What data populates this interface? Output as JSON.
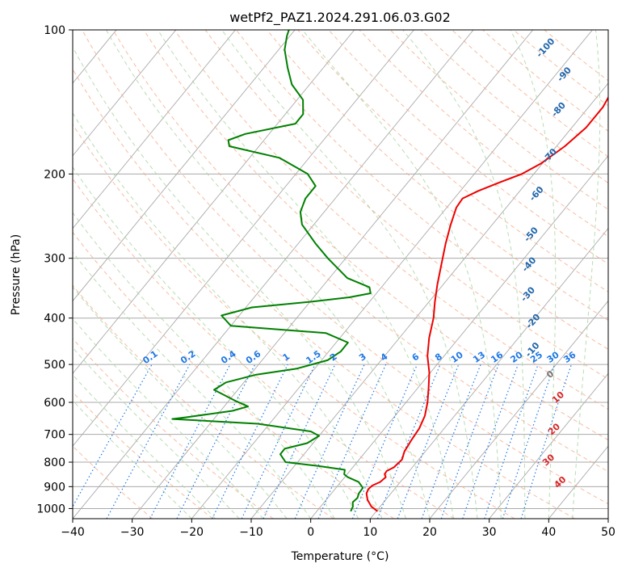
{
  "chart_data": {
    "type": "line",
    "title": "wetPf2_PAZ1.2024.291.06.03.G02",
    "xlabel": "Temperature (°C)",
    "ylabel": "Pressure (hPa)",
    "xlim": [
      -40,
      50
    ],
    "ylim": [
      1050,
      100
    ],
    "y_scale": "log",
    "skew": "skew-T log-p",
    "grid": true,
    "x_ticks": [
      -40,
      -30,
      -20,
      -10,
      0,
      10,
      20,
      30,
      40,
      50
    ],
    "x_tick_labels": [
      "−40",
      "−30",
      "−20",
      "−10",
      "0",
      "10",
      "20",
      "30",
      "40",
      "50"
    ],
    "y_ticks": [
      1000,
      900,
      800,
      700,
      600,
      500,
      400,
      300,
      200,
      100
    ],
    "y_tick_labels": [
      "1000",
      "900",
      "800",
      "700",
      "600",
      "500",
      "400",
      "300",
      "200",
      "100"
    ],
    "colors": {
      "temperature": "#ee0000",
      "dewpoint": "#008000",
      "isotherm": "#aaaaaa",
      "dry_adiabat": "#f4a582",
      "moist_adiabat": "#a6d49f",
      "mixing_ratio": "#1f78e6",
      "iso_label_blue": "#2166ac",
      "moist_label_red": "#d62728"
    },
    "series": [
      {
        "name": "",
        "color": "#ee0000",
        "points": [
          [
            1013,
            10.2
          ],
          [
            990,
            8.5
          ],
          [
            960,
            7.0
          ],
          [
            930,
            5.9
          ],
          [
            910,
            5.6
          ],
          [
            895,
            5.8
          ],
          [
            880,
            6.6
          ],
          [
            860,
            6.9
          ],
          [
            848,
            6.3
          ],
          [
            835,
            6.2
          ],
          [
            820,
            6.9
          ],
          [
            790,
            7.2
          ],
          [
            760,
            6.5
          ],
          [
            720,
            6.1
          ],
          [
            680,
            5.8
          ],
          [
            640,
            5.0
          ],
          [
            600,
            3.6
          ],
          [
            560,
            1.8
          ],
          [
            520,
            -0.2
          ],
          [
            480,
            -2.8
          ],
          [
            440,
            -5.0
          ],
          [
            400,
            -7.0
          ],
          [
            370,
            -9.0
          ],
          [
            340,
            -11.0
          ],
          [
            310,
            -13.0
          ],
          [
            280,
            -15.2
          ],
          [
            255,
            -17.0
          ],
          [
            235,
            -18.4
          ],
          [
            225,
            -18.6
          ],
          [
            217,
            -17.0
          ],
          [
            208,
            -14.5
          ],
          [
            200,
            -12.0
          ],
          [
            190,
            -10.2
          ],
          [
            175,
            -8.6
          ],
          [
            160,
            -7.6
          ],
          [
            145,
            -7.6
          ],
          [
            130,
            -8.6
          ],
          [
            118,
            -10.4
          ],
          [
            110,
            -13.0
          ],
          [
            104,
            -15.5
          ],
          [
            100,
            -17.0
          ]
        ]
      },
      {
        "name": "",
        "color": "#008000",
        "points": [
          [
            1013,
            5.7
          ],
          [
            990,
            5.4
          ],
          [
            970,
            4.8
          ],
          [
            950,
            5.0
          ],
          [
            930,
            4.6
          ],
          [
            905,
            4.5
          ],
          [
            880,
            3.0
          ],
          [
            860,
            0.5
          ],
          [
            848,
            -0.5
          ],
          [
            830,
            -1.0
          ],
          [
            815,
            -6.0
          ],
          [
            800,
            -12.0
          ],
          [
            770,
            -14.0
          ],
          [
            750,
            -14.0
          ],
          [
            730,
            -11.0
          ],
          [
            705,
            -10.0
          ],
          [
            690,
            -12.0
          ],
          [
            665,
            -22.0
          ],
          [
            650,
            -37.0
          ],
          [
            645,
            -35.0
          ],
          [
            625,
            -28.0
          ],
          [
            612,
            -26.0
          ],
          [
            595,
            -29.0
          ],
          [
            565,
            -34.0
          ],
          [
            545,
            -33.0
          ],
          [
            525,
            -29.0
          ],
          [
            510,
            -23.0
          ],
          [
            490,
            -19.0
          ],
          [
            470,
            -18.0
          ],
          [
            450,
            -18.0
          ],
          [
            430,
            -23.0
          ],
          [
            415,
            -40.0
          ],
          [
            395,
            -43.0
          ],
          [
            380,
            -39.0
          ],
          [
            370,
            -30.0
          ],
          [
            362,
            -24.0
          ],
          [
            355,
            -21.0
          ],
          [
            345,
            -22.0
          ],
          [
            330,
            -27.0
          ],
          [
            300,
            -33.0
          ],
          [
            280,
            -37.0
          ],
          [
            255,
            -42.0
          ],
          [
            240,
            -44.0
          ],
          [
            225,
            -45.0
          ],
          [
            212,
            -45.0
          ],
          [
            200,
            -48.0
          ],
          [
            185,
            -55.0
          ],
          [
            175,
            -65.0
          ],
          [
            170,
            -66.0
          ],
          [
            165,
            -64.0
          ],
          [
            157,
            -57.0
          ],
          [
            150,
            -57.0
          ],
          [
            140,
            -59.0
          ],
          [
            130,
            -63.0
          ],
          [
            120,
            -66.0
          ],
          [
            110,
            -69.0
          ],
          [
            103,
            -70.5
          ],
          [
            100,
            -71.0
          ]
        ]
      }
    ],
    "dry_adiabat_labels": [
      {
        "text": "-100",
        "p": 110,
        "T": -24.8
      },
      {
        "text": "-90",
        "p": 125,
        "T": -18.0
      },
      {
        "text": "-80",
        "p": 148,
        "T": -14.1
      },
      {
        "text": "-70",
        "p": 185,
        "T": -9.2
      },
      {
        "text": "-60",
        "p": 222,
        "T": -6.2
      },
      {
        "text": "-50",
        "p": 270,
        "T": -1.5
      },
      {
        "text": "-40",
        "p": 312,
        "T": 2.3
      },
      {
        "text": "-30",
        "p": 360,
        "T": 6.2
      },
      {
        "text": "-20",
        "p": 410,
        "T": 10.8
      },
      {
        "text": "-10",
        "p": 470,
        "T": 14.6
      }
    ],
    "moist_adiabat_labels": [
      {
        "text": "0",
        "p": 530,
        "T": 21.0
      },
      {
        "text": "10",
        "p": 592,
        "T": 25.5
      },
      {
        "text": "20",
        "p": 690,
        "T": 29.2
      },
      {
        "text": "30",
        "p": 800,
        "T": 32.5
      },
      {
        "text": "40",
        "p": 890,
        "T": 37.5
      }
    ],
    "mixing_ratio_labels": [
      "0.1",
      "0.2",
      "0.4",
      "0.6",
      "1",
      "1.5",
      "2",
      "3",
      "4",
      "6",
      "8",
      "10",
      "13",
      "16",
      "20",
      "25",
      "30",
      "36"
    ]
  }
}
